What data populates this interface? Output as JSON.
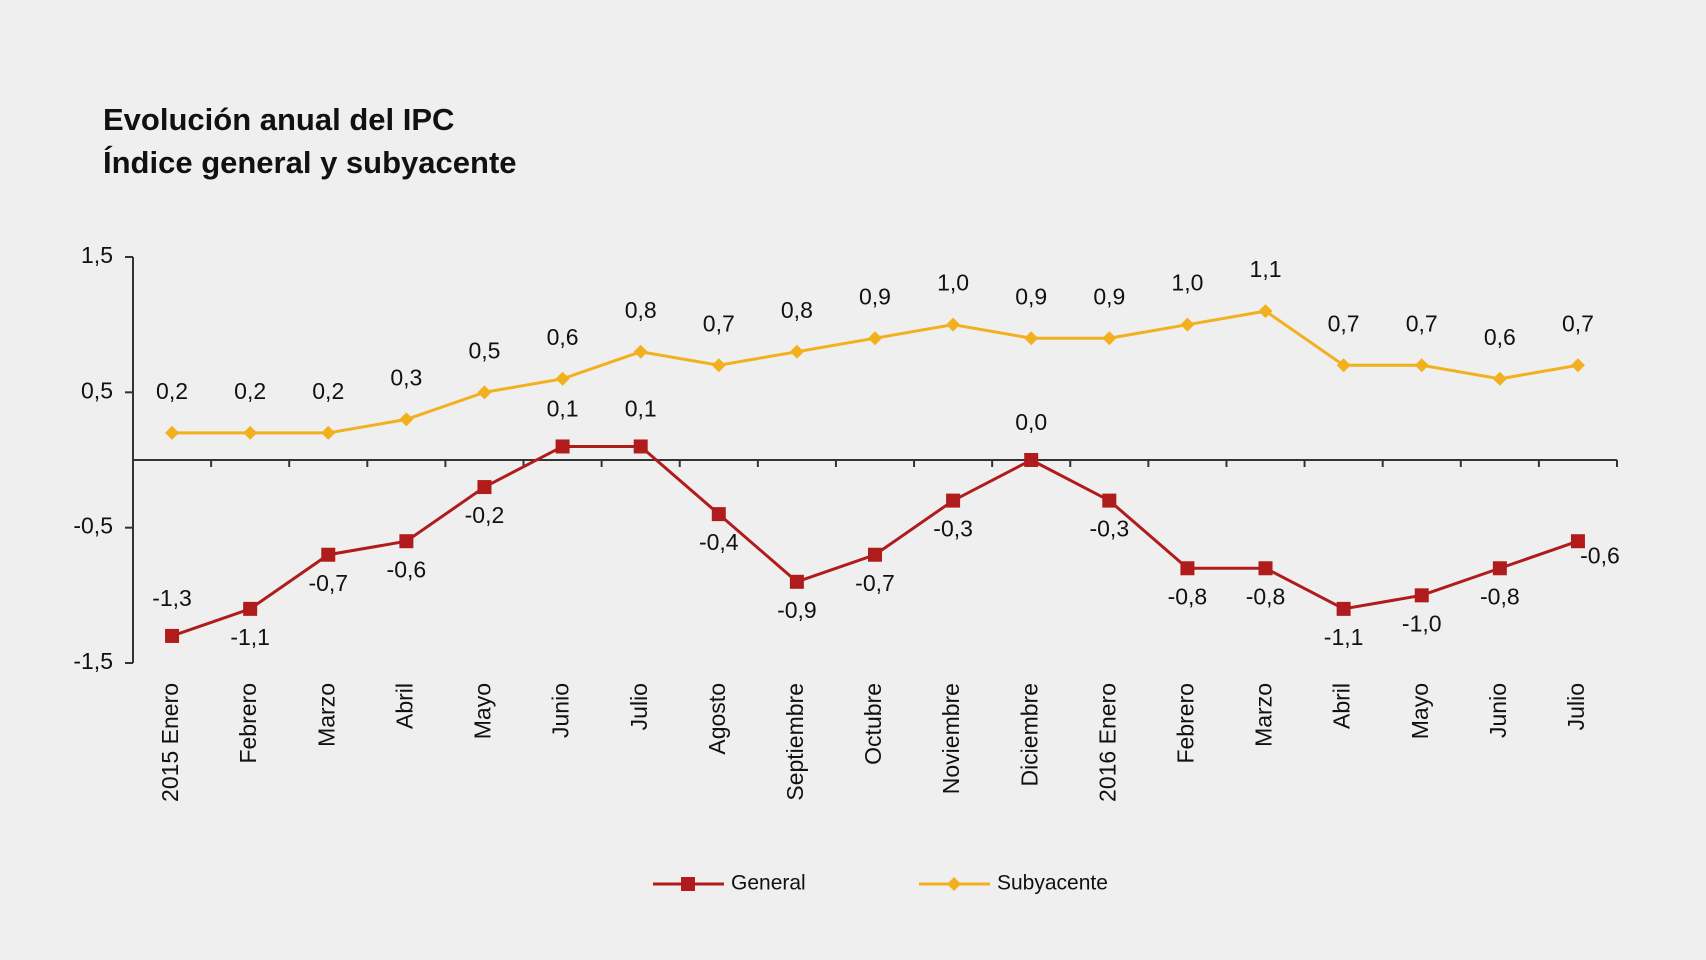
{
  "chart_data": {
    "type": "line",
    "title": "Evolución anual del IPC",
    "subtitle": "Índice general y subyacente",
    "categories": [
      "2015 Enero",
      "Febrero",
      "Marzo",
      "Abril",
      "Mayo",
      "Junio",
      "Julio",
      "Agosto",
      "Septiembre",
      "Octubre",
      "Noviembre",
      "Diciembre",
      "2016 Enero",
      "Febrero",
      "Marzo",
      "Abril",
      "Mayo",
      "Junio",
      "Julio"
    ],
    "series": [
      {
        "name": "General",
        "color": "#b01c1c",
        "marker": "square",
        "values": [
          -1.3,
          -1.1,
          -0.7,
          -0.6,
          -0.2,
          0.1,
          0.1,
          -0.4,
          -0.9,
          -0.7,
          -0.3,
          0.0,
          -0.3,
          -0.8,
          -0.8,
          -1.1,
          -1.0,
          -0.8,
          -0.6
        ],
        "value_labels": [
          "-1,3",
          "-1,1",
          "-0,7",
          "-0,6",
          "-0,2",
          "0,1",
          "0,1",
          "-0,4",
          "-0,9",
          "-0,7",
          "-0,3",
          "0,0",
          "-0,3",
          "-0,8",
          "-0,8",
          "-1,1",
          "-1,0",
          "-0,8",
          "-0,6"
        ]
      },
      {
        "name": "Subyacente",
        "color": "#f2b01e",
        "marker": "diamond",
        "values": [
          0.2,
          0.2,
          0.2,
          0.3,
          0.5,
          0.6,
          0.8,
          0.7,
          0.8,
          0.9,
          1.0,
          0.9,
          0.9,
          1.0,
          1.1,
          0.7,
          0.7,
          0.6,
          0.7
        ],
        "value_labels": [
          "0,2",
          "0,2",
          "0,2",
          "0,3",
          "0,5",
          "0,6",
          "0,8",
          "0,7",
          "0,8",
          "0,9",
          "1,0",
          "0,9",
          "0,9",
          "1,0",
          "1,1",
          "0,7",
          "0,7",
          "0,6",
          "0,7"
        ]
      }
    ],
    "ylim": [
      -1.5,
      1.5
    ],
    "yticks": [
      {
        "value": -1.5,
        "label": "-1,5"
      },
      {
        "value": -0.5,
        "label": "-0,5"
      },
      {
        "value": 0.5,
        "label": "0,5"
      },
      {
        "value": 1.5,
        "label": "1,5"
      }
    ],
    "grid": false,
    "legend": "bottom"
  }
}
